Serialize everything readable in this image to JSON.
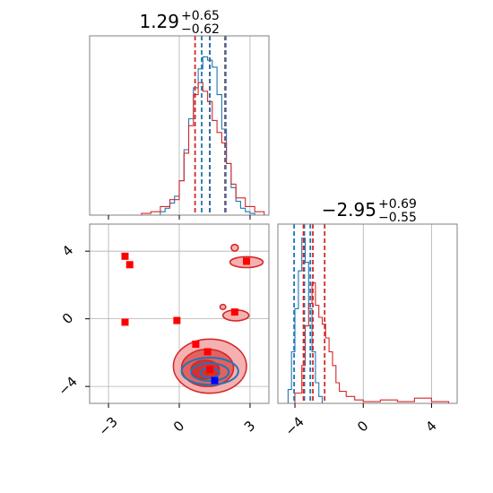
{
  "colors": {
    "blue": "#1f77b4",
    "red": "#d62728",
    "marker_red": "#ff0000",
    "marker_blue": "#0000ff",
    "grid": "#b0b0b0",
    "frame": "#808080",
    "red_fill_light": "#f4a9a9",
    "red_fill_dark": "#e05a5a"
  },
  "chart_data": [
    {
      "type": "histogram",
      "panel": "top-left",
      "title": {
        "value": "1.29",
        "upper": "+0.65",
        "lower": "−0.62"
      },
      "xlim": [
        -3.8,
        3.8
      ],
      "ylim": [
        0,
        1
      ],
      "gridlines_x": [
        0,
        3
      ],
      "ticks_x": [
        -3,
        0,
        3
      ],
      "show_tick_labels": false,
      "series": [
        {
          "color": "blue",
          "x": [
            -1.0,
            -0.8,
            -0.6,
            -0.4,
            -0.2,
            0.0,
            0.2,
            0.4,
            0.6,
            0.8,
            1.0,
            1.2,
            1.4,
            1.6,
            1.8,
            2.0,
            2.2,
            2.4,
            2.6,
            2.8,
            3.0,
            3.2
          ],
          "values": [
            0.0,
            0.02,
            0.04,
            0.07,
            0.11,
            0.2,
            0.38,
            0.56,
            0.74,
            0.85,
            0.92,
            0.9,
            0.86,
            0.7,
            0.5,
            0.3,
            0.16,
            0.08,
            0.04,
            0.02,
            0.01,
            0.0
          ]
        },
        {
          "color": "red",
          "x": [
            -2.0,
            -1.6,
            -1.2,
            -0.8,
            -0.4,
            0.0,
            0.2,
            0.4,
            0.6,
            0.8,
            1.0,
            1.2,
            1.4,
            1.6,
            1.8,
            2.0,
            2.2,
            2.4,
            2.8,
            3.2,
            3.6
          ],
          "values": [
            0.0,
            0.01,
            0.02,
            0.05,
            0.09,
            0.2,
            0.36,
            0.52,
            0.7,
            0.77,
            0.72,
            0.66,
            0.55,
            0.48,
            0.42,
            0.3,
            0.18,
            0.1,
            0.05,
            0.02,
            0.0
          ]
        }
      ],
      "dashed_lines": [
        {
          "color": "red",
          "x": [
            0.67,
            1.29,
            1.94
          ]
        },
        {
          "color": "blue",
          "x": [
            0.95,
            1.3,
            1.97
          ]
        }
      ]
    },
    {
      "type": "scatter-contour",
      "panel": "bottom-left",
      "xlim": [
        -3.8,
        3.8
      ],
      "ylim": [
        -5.0,
        5.6
      ],
      "xticks": [
        -3,
        0,
        3
      ],
      "xtick_labels": [
        "−3",
        "0",
        "3"
      ],
      "yticks": [
        -4,
        0,
        4
      ],
      "ytick_labels": [
        "−4",
        "0",
        "4"
      ],
      "red_markers": [
        [
          -2.3,
          3.7
        ],
        [
          -2.1,
          3.2
        ],
        [
          -2.3,
          -0.2
        ],
        [
          -0.1,
          -0.1
        ],
        [
          0.7,
          -1.5
        ],
        [
          1.2,
          -1.95
        ],
        [
          2.35,
          0.4
        ],
        [
          2.85,
          3.4
        ],
        [
          1.3,
          -3.0
        ]
      ],
      "blue_markers": [
        [
          1.5,
          -3.65
        ]
      ],
      "red_contours": [
        {
          "cx": 1.3,
          "cy": -2.8,
          "rx": 1.55,
          "ry": 1.6,
          "level": "outer"
        },
        {
          "cx": 1.2,
          "cy": -2.9,
          "rx": 1.1,
          "ry": 1.1,
          "level": "mid"
        },
        {
          "cx": 1.1,
          "cy": -3.0,
          "rx": 0.6,
          "ry": 0.55,
          "level": "inner"
        },
        {
          "cx": 2.85,
          "cy": 3.35,
          "rx": 0.7,
          "ry": 0.32,
          "level": "outer"
        },
        {
          "cx": 2.4,
          "cy": 0.2,
          "rx": 0.55,
          "ry": 0.32,
          "level": "outer"
        },
        {
          "cx": 2.35,
          "cy": 4.2,
          "rx": 0.15,
          "ry": 0.2,
          "level": "outer"
        },
        {
          "cx": 1.85,
          "cy": 0.7,
          "rx": 0.12,
          "ry": 0.15,
          "level": "outer"
        }
      ],
      "blue_contours": [
        {
          "cx": 1.3,
          "cy": -3.1,
          "rx": 1.2,
          "ry": 0.8
        },
        {
          "cx": 1.3,
          "cy": -3.15,
          "rx": 0.8,
          "ry": 0.52
        },
        {
          "cx": 1.3,
          "cy": -3.2,
          "rx": 0.4,
          "ry": 0.28
        }
      ]
    },
    {
      "type": "histogram",
      "panel": "bottom-right",
      "title": {
        "value": "−2.95",
        "upper": "+0.69",
        "lower": "−0.55"
      },
      "xlim": [
        -5.0,
        5.5
      ],
      "ylim": [
        0,
        1
      ],
      "gridlines_x": [
        0,
        4
      ],
      "xticks": [
        -4,
        0,
        4
      ],
      "xtick_labels": [
        "−4",
        "0",
        "4"
      ],
      "series": [
        {
          "color": "blue",
          "x": [
            -4.6,
            -4.4,
            -4.2,
            -4.0,
            -3.8,
            -3.6,
            -3.4,
            -3.2,
            -3.0,
            -2.8,
            -2.6,
            -2.4
          ],
          "values": [
            0.0,
            0.08,
            0.3,
            0.55,
            0.77,
            0.96,
            0.82,
            0.55,
            0.3,
            0.12,
            0.04,
            0.0
          ]
        },
        {
          "color": "red",
          "x": [
            -4.4,
            -4.0,
            -3.6,
            -3.4,
            -3.2,
            -3.0,
            -2.8,
            -2.6,
            -2.4,
            -2.2,
            -2.0,
            -1.8,
            -1.6,
            -1.4,
            -1.0,
            -0.5,
            0.0,
            1.0,
            2.0,
            3.0,
            4.0,
            5.0
          ],
          "values": [
            0.0,
            0.06,
            0.22,
            0.45,
            0.58,
            0.7,
            0.57,
            0.5,
            0.46,
            0.38,
            0.3,
            0.22,
            0.12,
            0.07,
            0.04,
            0.02,
            0.01,
            0.02,
            0.01,
            0.03,
            0.01,
            0.0
          ]
        }
      ],
      "dashed_lines": [
        {
          "color": "blue",
          "x": [
            -4.05,
            -3.45,
            -3.1
          ]
        },
        {
          "color": "red",
          "x": [
            -3.5,
            -2.95,
            -2.26
          ]
        }
      ]
    }
  ]
}
